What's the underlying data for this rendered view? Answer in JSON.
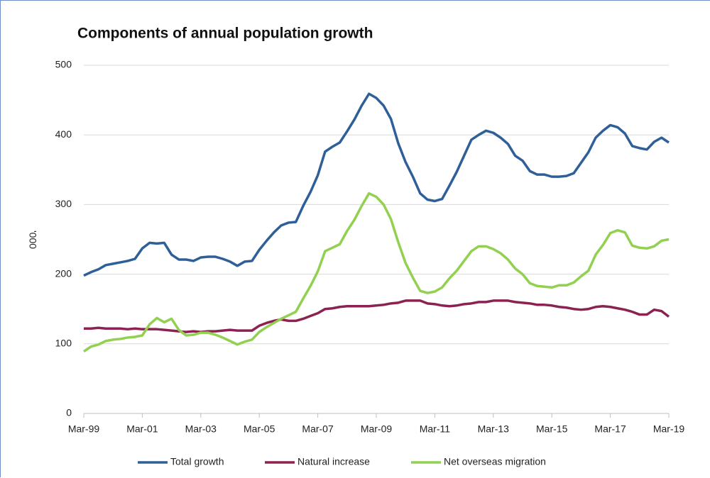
{
  "chart_data": {
    "type": "line",
    "title": "Components of annual population growth",
    "y_label": "'000",
    "categories": [
      "Mar-99",
      null,
      null,
      null,
      null,
      null,
      null,
      null,
      "Mar-01",
      null,
      null,
      null,
      null,
      null,
      null,
      null,
      "Mar-03",
      null,
      null,
      null,
      null,
      null,
      null,
      null,
      "Mar-05",
      null,
      null,
      null,
      null,
      null,
      null,
      null,
      "Mar-07",
      null,
      null,
      null,
      null,
      null,
      null,
      null,
      "Mar-09",
      null,
      null,
      null,
      null,
      null,
      null,
      null,
      "Mar-11",
      null,
      null,
      null,
      null,
      null,
      null,
      null,
      "Mar-13",
      null,
      null,
      null,
      null,
      null,
      null,
      null,
      "Mar-15",
      null,
      null,
      null,
      null,
      null,
      null,
      null,
      "Mar-17",
      null,
      null,
      null,
      null,
      null,
      null,
      null,
      "Mar-19"
    ],
    "series": [
      {
        "name": "Total growth",
        "color": "#2f5f98",
        "values": [
          198,
          203,
          207,
          213,
          215,
          217,
          219,
          222,
          237,
          245,
          244,
          245,
          228,
          221,
          221,
          219,
          224,
          225,
          225,
          222,
          218,
          212,
          218,
          219,
          235,
          248,
          260,
          270,
          274,
          275,
          298,
          318,
          342,
          376,
          383,
          389,
          405,
          422,
          442,
          459,
          453,
          442,
          423,
          388,
          361,
          340,
          316,
          307,
          305,
          308,
          327,
          347,
          370,
          393,
          400,
          406,
          403,
          396,
          387,
          370,
          363,
          348,
          343,
          343,
          340,
          340,
          341,
          345,
          360,
          375,
          396,
          406,
          414,
          411,
          402,
          384,
          381,
          379,
          390,
          396,
          389
        ]
      },
      {
        "name": "Natural increase",
        "color": "#8b2252",
        "values": [
          122,
          122,
          123,
          122,
          122,
          122,
          121,
          122,
          121,
          121,
          121,
          120,
          119,
          118,
          117,
          118,
          117,
          118,
          118,
          119,
          120,
          119,
          119,
          119,
          126,
          130,
          133,
          135,
          133,
          133,
          136,
          140,
          144,
          150,
          151,
          153,
          154,
          154,
          154,
          154,
          155,
          156,
          158,
          159,
          162,
          162,
          162,
          158,
          157,
          155,
          154,
          155,
          157,
          158,
          160,
          160,
          162,
          162,
          162,
          160,
          159,
          158,
          156,
          156,
          155,
          153,
          152,
          150,
          149,
          150,
          153,
          154,
          153,
          151,
          149,
          146,
          142,
          142,
          149,
          147,
          139
        ]
      },
      {
        "name": "Net overseas migration",
        "color": "#92d050",
        "values": [
          89,
          96,
          99,
          104,
          106,
          107,
          109,
          110,
          112,
          128,
          137,
          131,
          136,
          120,
          112,
          113,
          116,
          116,
          113,
          109,
          104,
          99,
          103,
          106,
          117,
          124,
          130,
          136,
          141,
          146,
          165,
          183,
          204,
          233,
          238,
          243,
          262,
          278,
          298,
          316,
          311,
          300,
          279,
          246,
          216,
          195,
          176,
          173,
          175,
          181,
          194,
          205,
          219,
          233,
          240,
          240,
          236,
          230,
          221,
          208,
          200,
          187,
          183,
          182,
          181,
          184,
          184,
          188,
          197,
          205,
          228,
          242,
          259,
          263,
          260,
          241,
          238,
          237,
          240,
          248,
          250
        ]
      }
    ],
    "ylim": [
      0,
      500
    ],
    "yticks": [
      0,
      100,
      200,
      300,
      400,
      500
    ],
    "grid": true,
    "legend": "bottom"
  }
}
